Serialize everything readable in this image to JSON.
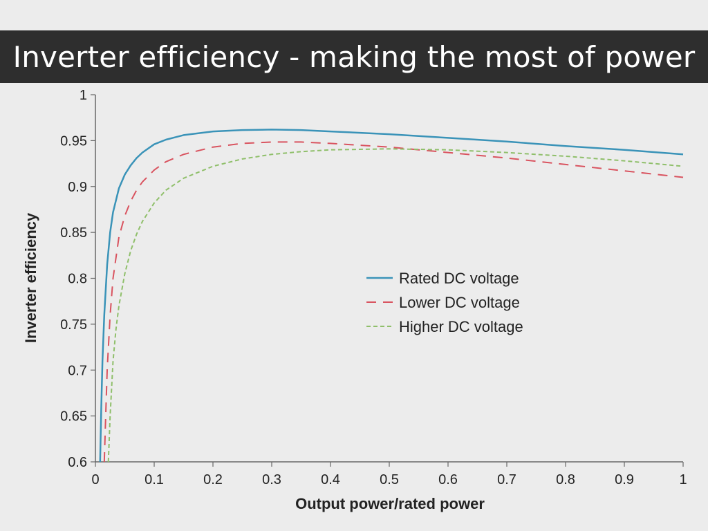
{
  "header": {
    "title": "Inverter efficiency - making the most of power"
  },
  "chart_data": {
    "type": "line",
    "xlabel": "Output power/rated power",
    "ylabel": "Inverter efficiency",
    "xlim": [
      0,
      1
    ],
    "ylim": [
      0.6,
      1
    ],
    "xticks": [
      "0",
      "0.1",
      "0.2",
      "0.3",
      "0.4",
      "0.5",
      "0.6",
      "0.7",
      "0.8",
      "0.9",
      "1"
    ],
    "yticks": [
      "0.6",
      "0.65",
      "0.7",
      "0.75",
      "0.8",
      "0.85",
      "0.9",
      "0.95",
      "1"
    ],
    "grid": false,
    "legend_position": "center-right",
    "series": [
      {
        "name": "Rated DC voltage",
        "color": "#3a93b8",
        "dash": "solid",
        "x": [
          0.008,
          0.01,
          0.012,
          0.015,
          0.02,
          0.025,
          0.03,
          0.04,
          0.05,
          0.06,
          0.07,
          0.08,
          0.1,
          0.12,
          0.15,
          0.2,
          0.25,
          0.3,
          0.35,
          0.4,
          0.5,
          0.6,
          0.7,
          0.8,
          0.9,
          1.0
        ],
        "y": [
          0.6,
          0.66,
          0.71,
          0.76,
          0.815,
          0.85,
          0.872,
          0.898,
          0.913,
          0.923,
          0.931,
          0.937,
          0.946,
          0.951,
          0.956,
          0.96,
          0.9615,
          0.962,
          0.9615,
          0.96,
          0.957,
          0.953,
          0.949,
          0.944,
          0.94,
          0.935
        ]
      },
      {
        "name": "Lower DC voltage",
        "color": "#d9535f",
        "dash": "14,10",
        "x": [
          0.015,
          0.018,
          0.02,
          0.025,
          0.03,
          0.04,
          0.05,
          0.06,
          0.07,
          0.08,
          0.1,
          0.12,
          0.15,
          0.2,
          0.25,
          0.3,
          0.35,
          0.4,
          0.5,
          0.6,
          0.7,
          0.8,
          0.9,
          1.0
        ],
        "y": [
          0.6,
          0.66,
          0.7,
          0.76,
          0.8,
          0.845,
          0.868,
          0.884,
          0.896,
          0.905,
          0.918,
          0.927,
          0.935,
          0.943,
          0.947,
          0.9485,
          0.9485,
          0.947,
          0.943,
          0.937,
          0.931,
          0.924,
          0.917,
          0.91
        ]
      },
      {
        "name": "Higher DC voltage",
        "color": "#8fbf6a",
        "dash": "6,4",
        "x": [
          0.022,
          0.025,
          0.03,
          0.035,
          0.04,
          0.05,
          0.06,
          0.07,
          0.08,
          0.1,
          0.12,
          0.15,
          0.2,
          0.25,
          0.3,
          0.35,
          0.4,
          0.5,
          0.6,
          0.7,
          0.8,
          0.9,
          1.0
        ],
        "y": [
          0.6,
          0.65,
          0.71,
          0.745,
          0.77,
          0.805,
          0.83,
          0.848,
          0.862,
          0.882,
          0.896,
          0.909,
          0.922,
          0.93,
          0.935,
          0.938,
          0.94,
          0.941,
          0.94,
          0.937,
          0.933,
          0.928,
          0.922
        ]
      }
    ]
  }
}
